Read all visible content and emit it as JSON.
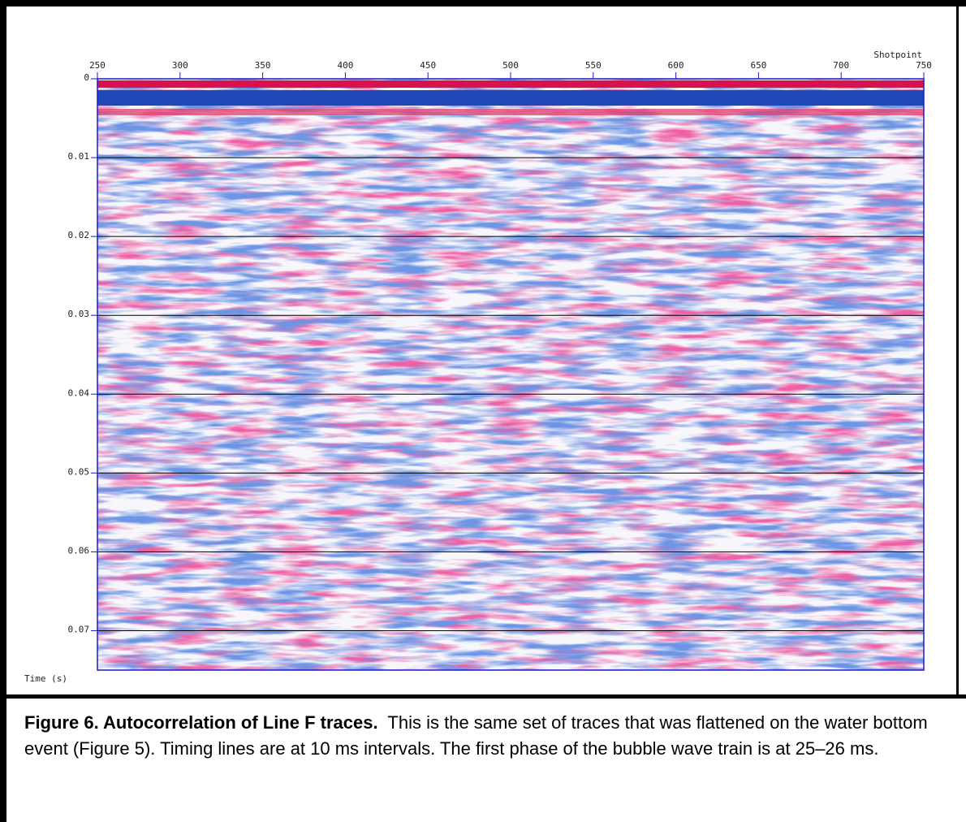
{
  "chart_data": {
    "type": "seismic",
    "x_label": "Shotpoint",
    "y_label": "Time (s)",
    "xlim": [
      250,
      750
    ],
    "xticks": [
      250,
      300,
      350,
      400,
      450,
      500,
      550,
      600,
      650,
      700,
      750
    ],
    "ylim": [
      0,
      0.075
    ],
    "yticks": [
      0,
      0.01,
      0.02,
      0.03,
      0.04,
      0.05,
      0.06,
      0.07
    ],
    "grid": true
  },
  "caption": {
    "bold": "Figure 6.  Autocorrelation of Line F traces.",
    "text": "This is the same set of traces that was flattened on the water bottom event (Figure 5).  Timing lines are at 10 ms intervals.  The first phase of the bubble wave train is at 25–26 ms."
  }
}
